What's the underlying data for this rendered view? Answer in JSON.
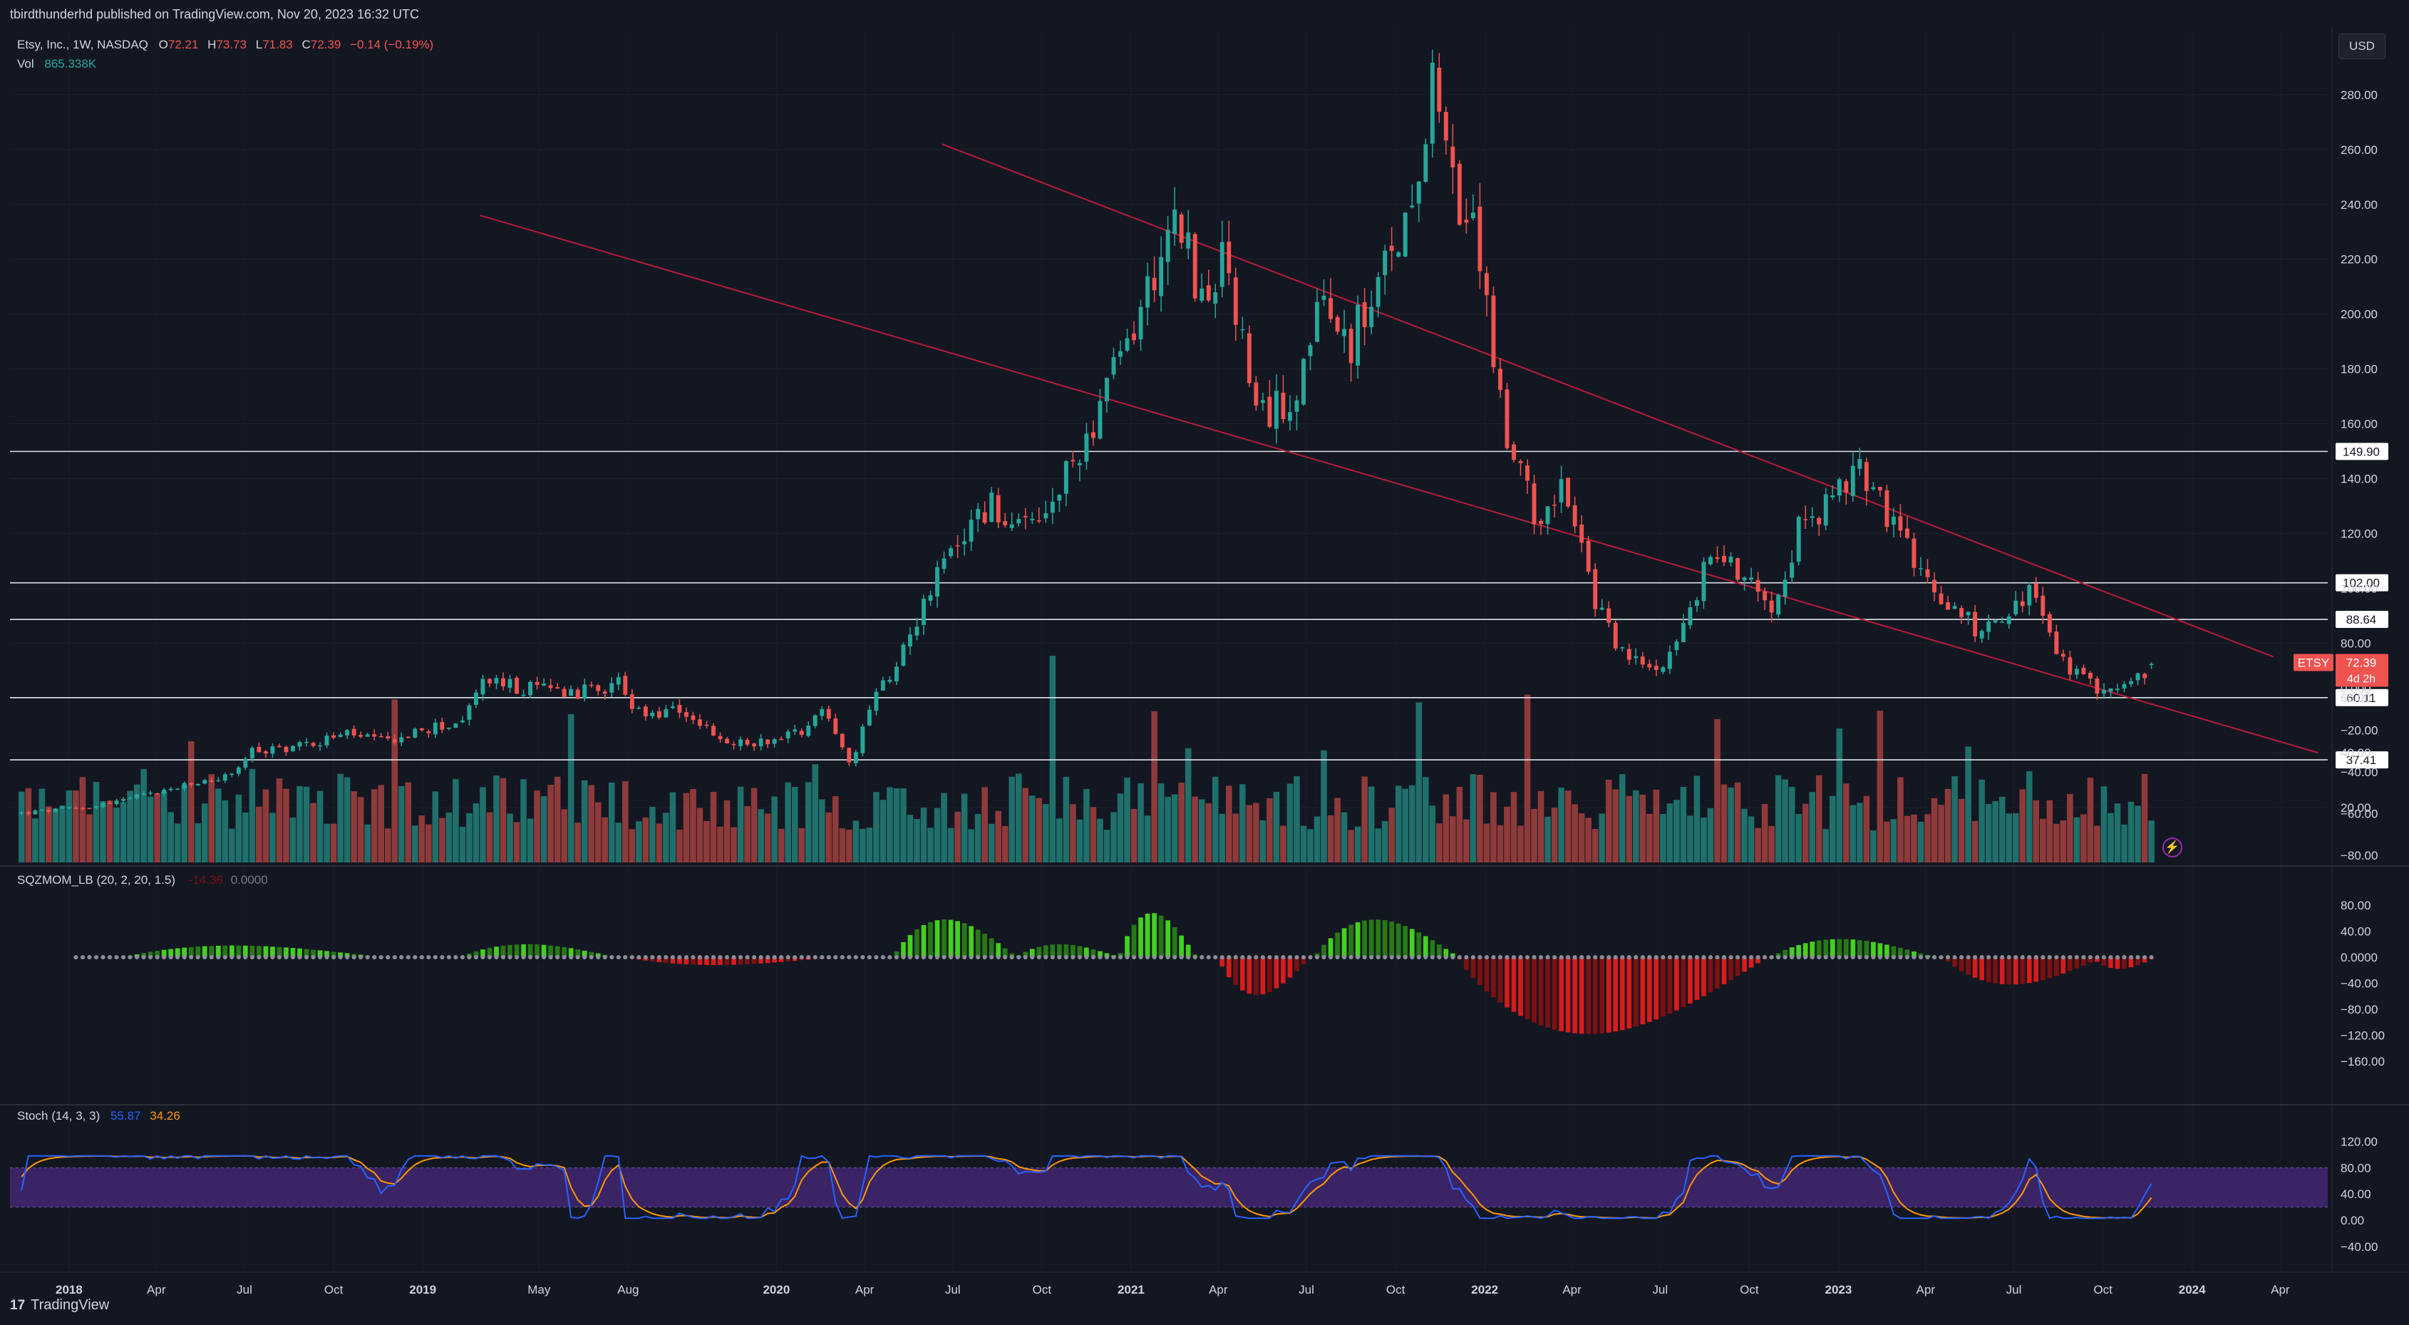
{
  "published_line": "tbirdthunderhd published on TradingView.com, Nov 20, 2023 16:32 UTC",
  "legend": {
    "symbol": "Etsy, Inc., 1W, NASDAQ",
    "o_label": "O",
    "o": "72.21",
    "h_label": "H",
    "h": "73.73",
    "l_label": "L",
    "l": "71.83",
    "c_label": "C",
    "c": "72.39",
    "change": "−0.14 (−0.19%)",
    "vol_label": "Vol",
    "vol": "865.338K"
  },
  "currency_button": "USD",
  "brand": "TradingView",
  "brand_icon": "tradingview-logo-icon",
  "colors": {
    "up": "#26a69a",
    "down": "#ef5350",
    "vol_up": "#1f6f6b",
    "vol_down": "#8f3a3a",
    "trendline": "#b71c3a",
    "sqz_green_bright": "#43d11f",
    "sqz_green_dark": "#267a16",
    "sqz_red_bright": "#d81b1b",
    "sqz_red_dark": "#7d1010",
    "stoch_k": "#2962ff",
    "stoch_d": "#ff9800",
    "stoch_band": "#3a2466"
  },
  "chart_data": [
    {
      "type": "candlestick",
      "pane": "price",
      "title": "Etsy, Inc., 1W, NASDAQ",
      "ylim": [
        0,
        300
      ],
      "y_ticks": [
        "20.00",
        "40.00",
        "60.00",
        "80.00",
        "100.00",
        "120.00",
        "140.00",
        "160.00",
        "180.00",
        "200.00",
        "220.00",
        "240.00",
        "260.00",
        "280.00"
      ],
      "x_ticks": [
        "2018",
        "Apr",
        "Jul",
        "Oct",
        "2019",
        "May",
        "Aug",
        "2020",
        "Apr",
        "Jul",
        "Oct",
        "2021",
        "Apr",
        "Jul",
        "Oct",
        "2022",
        "Apr",
        "Jul",
        "Oct",
        "2023",
        "Apr",
        "Jul",
        "Oct",
        "2024",
        "Apr"
      ],
      "x_tick_dates": [
        "2018-01-01",
        "2018-04-01",
        "2018-07-01",
        "2018-10-01",
        "2019-01-01",
        "2019-05-01",
        "2019-08-01",
        "2020-01-01",
        "2020-04-01",
        "2020-07-01",
        "2020-10-01",
        "2021-01-01",
        "2021-04-01",
        "2021-07-01",
        "2021-10-01",
        "2022-01-01",
        "2022-04-01",
        "2022-07-01",
        "2022-10-01",
        "2023-01-01",
        "2023-04-01",
        "2023-07-01",
        "2023-10-01",
        "2024-01-01",
        "2024-04-01"
      ],
      "x_range": [
        "2017-11-01",
        "2024-05-20"
      ],
      "close_path": [
        [
          "2017-11-13",
          18
        ],
        [
          "2018-01-15",
          20
        ],
        [
          "2018-03-01",
          23
        ],
        [
          "2018-05-15",
          29
        ],
        [
          "2018-06-20",
          32
        ],
        [
          "2018-07-05",
          40
        ],
        [
          "2018-09-01",
          43
        ],
        [
          "2018-10-15",
          47
        ],
        [
          "2018-11-20",
          44
        ],
        [
          "2019-01-01",
          48
        ],
        [
          "2019-02-15",
          52
        ],
        [
          "2019-03-01",
          67
        ],
        [
          "2019-04-15",
          63
        ],
        [
          "2019-05-15",
          64
        ],
        [
          "2019-06-15",
          62
        ],
        [
          "2019-07-25",
          66
        ],
        [
          "2019-08-05",
          54
        ],
        [
          "2019-09-01",
          54
        ],
        [
          "2019-10-01",
          55
        ],
        [
          "2019-11-05",
          43
        ],
        [
          "2019-12-15",
          44
        ],
        [
          "2020-01-25",
          48
        ],
        [
          "2020-02-20",
          57
        ],
        [
          "2020-03-10",
          41
        ],
        [
          "2020-03-20",
          36
        ],
        [
          "2020-04-05",
          55
        ],
        [
          "2020-05-05",
          75
        ],
        [
          "2020-06-01",
          95
        ],
        [
          "2020-07-10",
          120
        ],
        [
          "2020-08-10",
          130
        ],
        [
          "2020-09-10",
          120
        ],
        [
          "2020-10-05",
          125
        ],
        [
          "2020-11-05",
          148
        ],
        [
          "2020-12-05",
          170
        ],
        [
          "2021-01-15",
          205
        ],
        [
          "2021-02-15",
          240
        ],
        [
          "2021-03-15",
          205
        ],
        [
          "2021-04-10",
          220
        ],
        [
          "2021-05-10",
          160
        ],
        [
          "2021-06-15",
          170
        ],
        [
          "2021-07-15",
          200
        ],
        [
          "2021-08-15",
          190
        ],
        [
          "2021-09-15",
          210
        ],
        [
          "2021-10-15",
          240
        ],
        [
          "2021-11-12",
          295
        ],
        [
          "2021-12-01",
          240
        ],
        [
          "2021-12-25",
          225
        ],
        [
          "2022-01-25",
          150
        ],
        [
          "2022-02-25",
          125
        ],
        [
          "2022-03-20",
          140
        ],
        [
          "2022-04-25",
          95
        ],
        [
          "2022-05-25",
          75
        ],
        [
          "2022-06-25",
          70
        ],
        [
          "2022-07-25",
          85
        ],
        [
          "2022-08-25",
          115
        ],
        [
          "2022-09-25",
          105
        ],
        [
          "2022-10-25",
          95
        ],
        [
          "2022-11-25",
          125
        ],
        [
          "2022-12-25",
          130
        ],
        [
          "2023-01-20",
          145
        ],
        [
          "2023-02-25",
          125
        ],
        [
          "2023-03-25",
          105
        ],
        [
          "2023-04-25",
          95
        ],
        [
          "2023-05-25",
          85
        ],
        [
          "2023-06-25",
          90
        ],
        [
          "2023-07-20",
          100
        ],
        [
          "2023-08-15",
          75
        ],
        [
          "2023-09-15",
          65
        ],
        [
          "2023-10-15",
          63
        ],
        [
          "2023-11-01",
          65
        ],
        [
          "2023-11-20",
          72.39
        ]
      ],
      "horizontal_levels": [
        {
          "value": 149.9,
          "label": "149.90"
        },
        {
          "value": 102.0,
          "label": "102.00"
        },
        {
          "value": 88.64,
          "label": "88.64"
        },
        {
          "value": 60.11,
          "label": "60.11"
        },
        {
          "value": 37.41,
          "label": "37.41"
        }
      ],
      "trendlines": [
        {
          "from": [
            "2019-03-01",
            236
          ],
          "to": [
            "2024-05-10",
            40
          ]
        },
        {
          "from": [
            "2020-06-20",
            262
          ],
          "to": [
            "2024-03-25",
            75
          ]
        }
      ],
      "last_price": {
        "symbol": "ETSY",
        "value": "72.39",
        "countdown": "4d 2h"
      }
    },
    {
      "type": "bar",
      "pane": "volume",
      "title": "Vol",
      "note": "volume bars share the price pane; relative heights only"
    },
    {
      "type": "bar",
      "pane": "squeeze_momentum",
      "title": "SQZMOM_LB (20, 2, 20, 1.5)",
      "values_label": [
        "-14.36",
        "0.0000"
      ],
      "ylim": [
        -180,
        95
      ],
      "y_ticks": [
        "80.00",
        "40.00",
        "0.0000",
        "−40.00",
        "−80.00",
        "−120.00",
        "−160.00"
      ],
      "y_tick_values": [
        80,
        40,
        0,
        -40,
        -80,
        -120,
        -160
      ]
    },
    {
      "type": "line",
      "pane": "stochastic",
      "title": "Stoch (14, 3, 3)",
      "series": [
        {
          "name": "%K",
          "last": "55.87"
        },
        {
          "name": "%D",
          "last": "34.26"
        }
      ],
      "band": [
        20,
        80
      ],
      "ylim": [
        -45,
        125
      ],
      "y_ticks": [
        "120.00",
        "80.00",
        "40.00",
        "0.00",
        "−40.00"
      ],
      "y_tick_values": [
        120,
        80,
        40,
        0,
        -40
      ]
    }
  ]
}
